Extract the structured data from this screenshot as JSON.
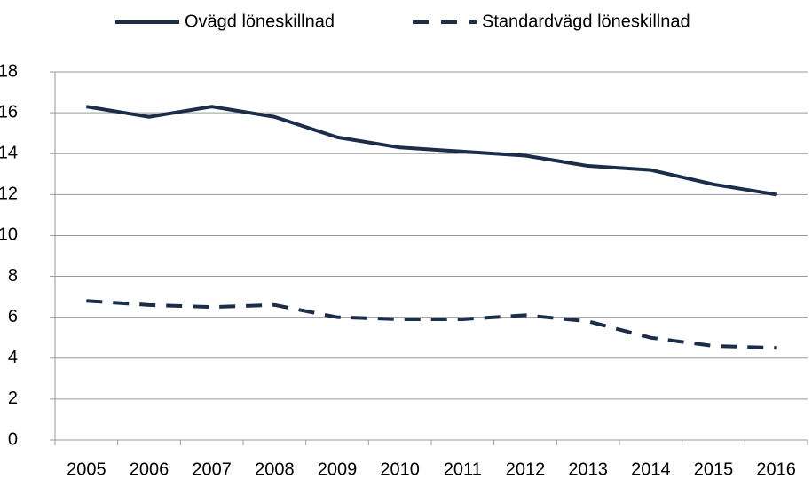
{
  "chart_data": {
    "type": "line",
    "categories": [
      "2005",
      "2006",
      "2007",
      "2008",
      "2009",
      "2010",
      "2011",
      "2012",
      "2013",
      "2014",
      "2015",
      "2016"
    ],
    "series": [
      {
        "name": "Ovägd löneskillnad",
        "color": "#1c2d4a",
        "line_style": "solid",
        "values": [
          16.3,
          15.8,
          16.3,
          15.8,
          14.8,
          14.3,
          14.1,
          13.9,
          13.4,
          13.2,
          12.5,
          12.0
        ]
      },
      {
        "name": "Standardvägd löneskillnad",
        "color": "#1c2d4a",
        "line_style": "dashed",
        "values": [
          6.8,
          6.6,
          6.5,
          6.6,
          6.0,
          5.9,
          5.9,
          6.1,
          5.8,
          5.0,
          4.6,
          4.5
        ]
      }
    ],
    "ylim": [
      0,
      18
    ],
    "yticks": [
      0,
      2,
      4,
      6,
      8,
      10,
      12,
      14,
      16,
      18
    ],
    "grid": true,
    "legend": "top"
  }
}
